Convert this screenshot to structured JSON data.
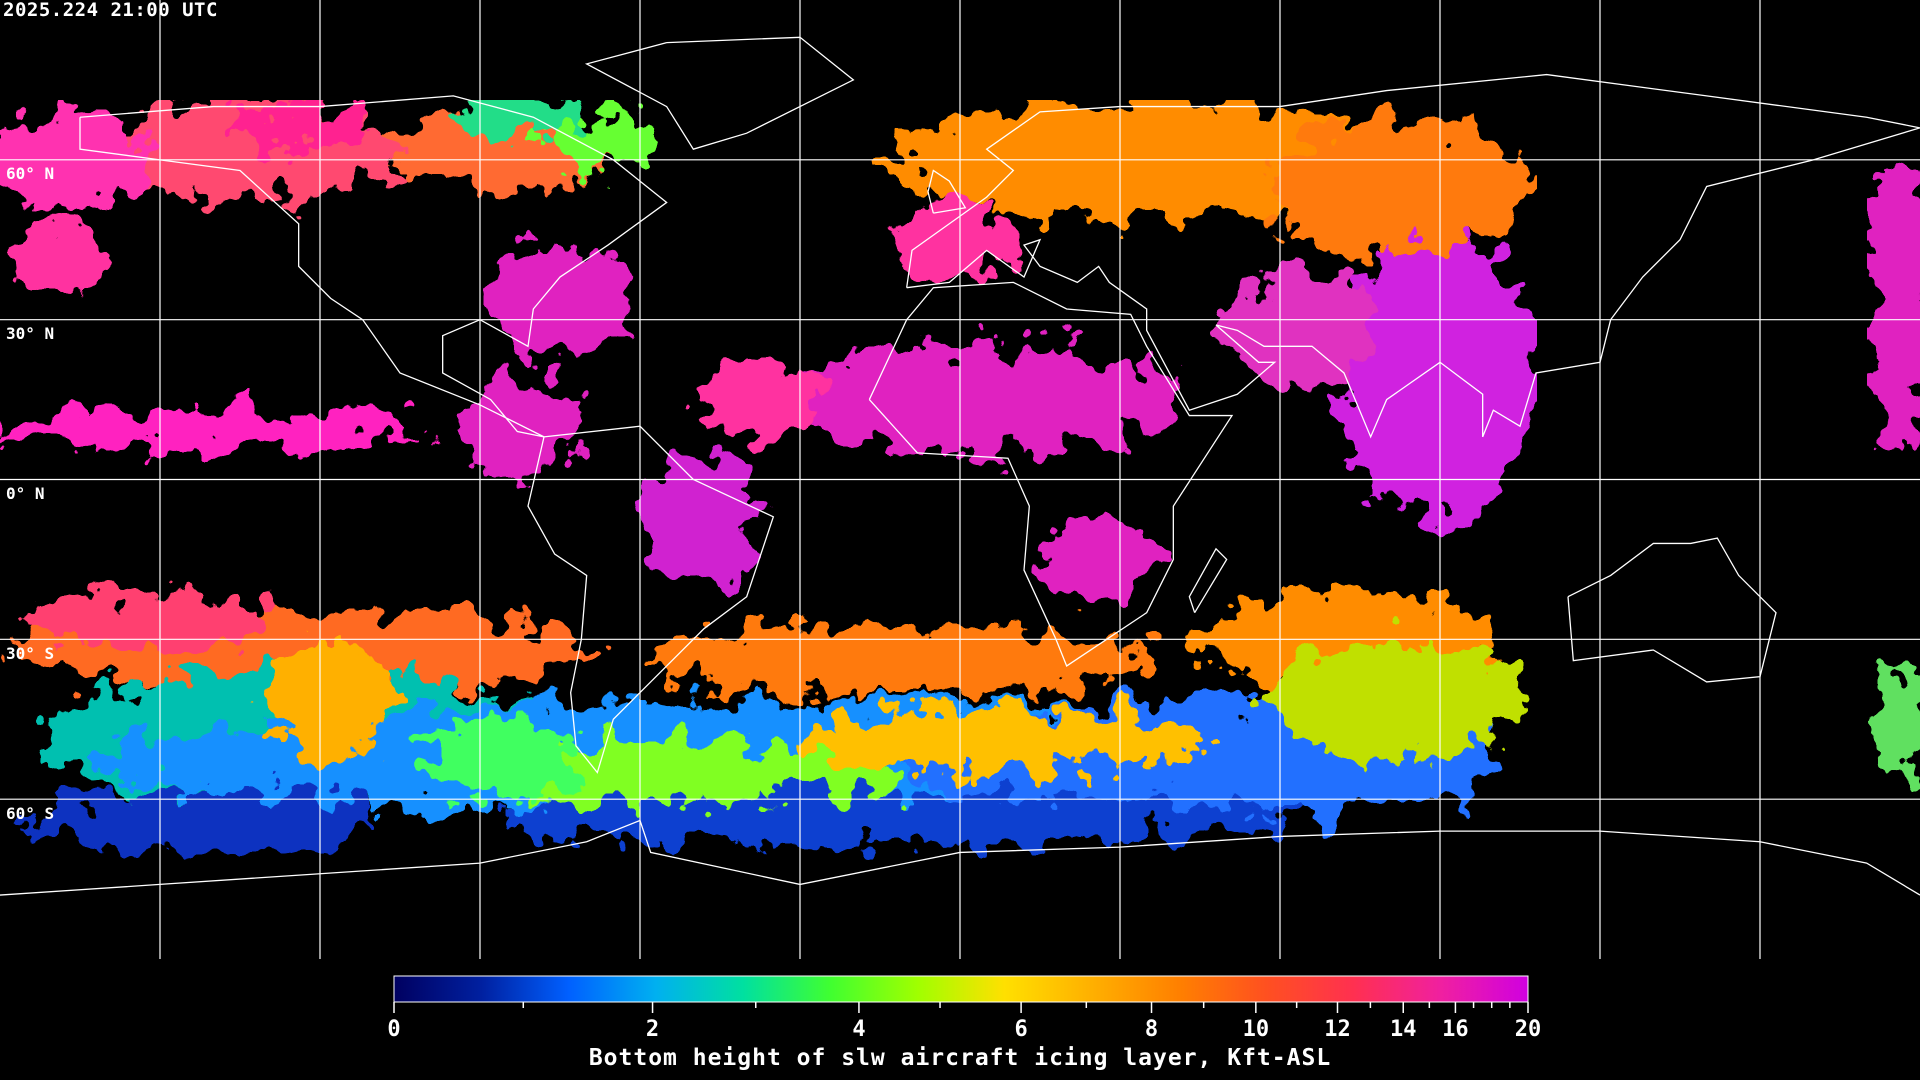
{
  "timestamp": "2025.224 21:00 UTC",
  "lat_labels": [
    "60° N",
    "30° N",
    "0° N",
    "30° S",
    "60° S"
  ],
  "grid": {
    "lon_step_deg": 30,
    "lat_step_deg": 30
  },
  "colorbar": {
    "title": "Bottom height of slw aircraft icing layer, Kft-ASL",
    "range": [
      0,
      20
    ],
    "major_ticks": [
      0,
      2,
      4,
      6,
      8,
      10,
      12,
      14,
      16,
      20
    ],
    "tick_labels": [
      "0",
      "2",
      "4",
      "6",
      "8",
      "10",
      "12",
      "14",
      "16",
      "20"
    ],
    "minor_ticks": [
      1,
      3,
      5,
      7,
      9,
      11,
      13,
      15,
      17,
      18,
      19
    ],
    "colormap": [
      "#000060",
      "#0020a0",
      "#0060ff",
      "#00b0f0",
      "#00e0a0",
      "#40ff30",
      "#a0ff00",
      "#ffe000",
      "#ffb000",
      "#ff8000",
      "#ff5020",
      "#ff3050",
      "#f020a0",
      "#d000e0"
    ]
  },
  "colors": {
    "background": "#000000",
    "coastline": "#ffffff",
    "grid": "#ffffff"
  }
}
